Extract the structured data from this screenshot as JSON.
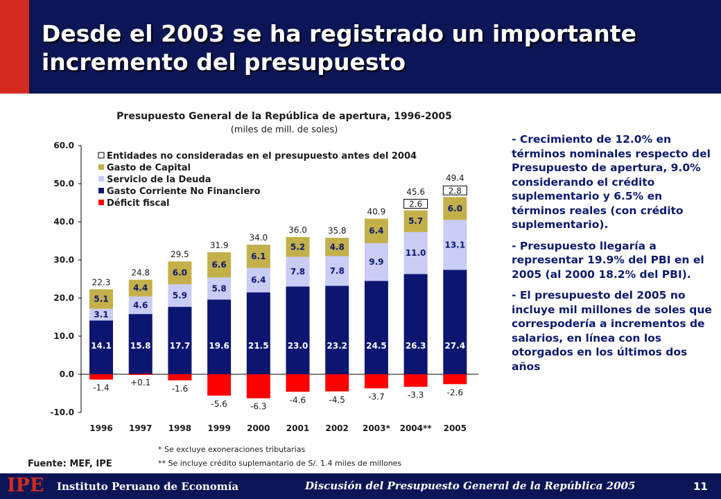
{
  "title": "Desde el 2003 se ha registrado un importante incremento del presupuesto",
  "chart_data": {
    "type": "bar",
    "title": "Presupuesto General de la República de apertura, 1996-2005",
    "subtitle": "(miles de mill. de soles)",
    "categories": [
      "1996",
      "1997",
      "1998",
      "1999",
      "2000",
      "2001",
      "2002",
      "2003*",
      "2004**",
      "2005"
    ],
    "ylim": [
      -10,
      60
    ],
    "yticks": [
      "60.0",
      "50.0",
      "40.0",
      "30.0",
      "20.0",
      "10.0",
      "0.0",
      "-10.0"
    ],
    "series": [
      {
        "name": "Gasto Corriente No Financiero",
        "color": "#0c1670",
        "values": [
          14.1,
          15.8,
          17.7,
          19.6,
          21.5,
          23.0,
          23.2,
          24.5,
          26.3,
          27.4
        ],
        "labels": [
          "14.1",
          "15.8",
          "17.7",
          "19.6",
          "21.5",
          "23.0",
          "23.2",
          "24.5",
          "26.3",
          "27.4"
        ]
      },
      {
        "name": "Servicio de la Deuda",
        "color": "#c9ccf5",
        "values": [
          3.1,
          4.6,
          5.9,
          5.8,
          6.4,
          7.8,
          7.8,
          9.9,
          11.0,
          13.1
        ],
        "labels": [
          "3.1",
          "4.6",
          "5.9",
          "5.8",
          "6.4",
          "7.8",
          "7.8",
          "9.9",
          "11.0",
          "13.1"
        ]
      },
      {
        "name": "Gasto de Capital",
        "color": "#c4b04a",
        "values": [
          5.1,
          4.4,
          6.0,
          6.6,
          6.1,
          5.2,
          4.8,
          6.4,
          5.7,
          6.0
        ],
        "labels": [
          "5.1",
          "4.4",
          "6.0",
          "6.6",
          "6.1",
          "5.2",
          "4.8",
          "6.4",
          "5.7",
          "6.0"
        ]
      },
      {
        "name": "Entidades no consideradas en el presupuesto antes del 2004",
        "color": "#ffffff",
        "values": [
          null,
          null,
          null,
          null,
          null,
          null,
          null,
          null,
          2.6,
          2.8
        ],
        "labels": [
          "",
          "",
          "",
          "",
          "",
          "",
          "",
          "",
          "2.6",
          "2.8"
        ]
      },
      {
        "name": "Déficit fiscal",
        "color": "#ff0000",
        "values": [
          -1.4,
          0.1,
          -1.6,
          -5.6,
          -6.3,
          -4.6,
          -4.5,
          -3.7,
          -3.3,
          -2.6
        ],
        "labels": [
          "-1.4",
          "+0.1",
          "-1.6",
          "-5.6",
          "-6.3",
          "-4.6",
          "-4.5",
          "-3.7",
          "-3.3",
          "-2.6"
        ]
      }
    ],
    "totals": [
      "22.3",
      "24.8",
      "29.5",
      "31.9",
      "34.0",
      "36.0",
      "35.8",
      "40.9",
      "45.6",
      "49.4"
    ],
    "legend_order": [
      "Entidades no consideradas en el presupuesto antes del 2004",
      "Gasto de Capital",
      "Servicio de la Deuda",
      "Gasto Corriente No Financiero",
      "Déficit fiscal"
    ],
    "legend_position": "top-left",
    "grid": false
  },
  "bullets": [
    "- Crecimiento de 12.0% en términos nominales respecto del Presupuesto de apertura, 9.0% considerando el crédito suplementario y 6.5% en términos reales (con crédito suplementario).",
    "- Presupuesto llegaría a representar 19.9% del PBI en el 2005 (al 2000 18.2% del PBI).",
    "- El presupuesto del 2005 no incluye mil millones de soles que correspodería a incrementos de salarios, en línea con los otorgados en los últimos dos años"
  ],
  "source": "Fuente: MEF, IPE",
  "notes": [
    "* Se excluye exoneraciones tributarias",
    "** Se incluye crédito suplemantario de S/. 1.4 miles de millones"
  ],
  "footer": {
    "logo": "IPE",
    "institution": "Instituto Peruano de Economía",
    "document": "Discusión del Presupuesto General de la República 2005",
    "page": "11"
  }
}
